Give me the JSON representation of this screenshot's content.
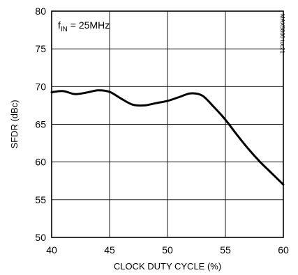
{
  "chart_data": {
    "type": "line",
    "title": "",
    "xlabel": "CLOCK DUTY CYCLE (%)",
    "ylabel": "SFDR (dBc)",
    "xlim": [
      40,
      60
    ],
    "ylim": [
      50,
      80
    ],
    "xticks": [
      40,
      45,
      50,
      55,
      60
    ],
    "yticks": [
      50,
      55,
      60,
      65,
      70,
      75,
      80
    ],
    "grid": true,
    "legend": "none",
    "annotation": {
      "text_main": "f",
      "text_sub": "IN",
      "text_rest": " = 25MHz",
      "position": "top-left"
    },
    "side_label": "MAX5866 toc21",
    "series": [
      {
        "color": "#000000",
        "points": [
          [
            40.0,
            69.25
          ],
          [
            41.0,
            69.4
          ],
          [
            42.0,
            69.0
          ],
          [
            43.0,
            69.2
          ],
          [
            44.0,
            69.5
          ],
          [
            45.0,
            69.3
          ],
          [
            46.0,
            68.4
          ],
          [
            47.0,
            67.6
          ],
          [
            48.0,
            67.5
          ],
          [
            49.0,
            67.8
          ],
          [
            50.0,
            68.1
          ],
          [
            51.0,
            68.6
          ],
          [
            52.0,
            69.1
          ],
          [
            53.0,
            68.8
          ],
          [
            54.0,
            67.3
          ],
          [
            55.0,
            65.6
          ],
          [
            56.0,
            63.6
          ],
          [
            57.0,
            61.7
          ],
          [
            58.0,
            60.0
          ],
          [
            59.0,
            58.5
          ],
          [
            60.0,
            57.0
          ]
        ]
      }
    ]
  }
}
